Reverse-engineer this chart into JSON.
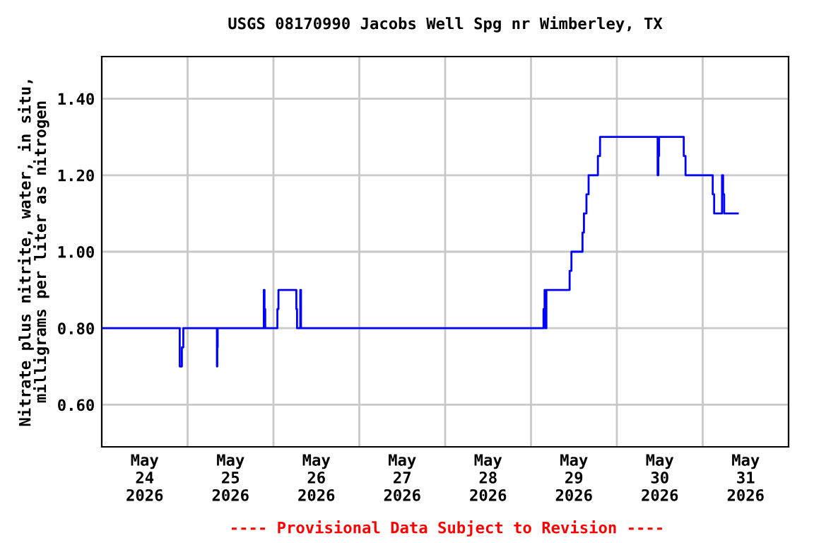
{
  "chart_data": {
    "type": "step",
    "title": "USGS 08170990 Jacobs Well Spg nr Wimberley, TX",
    "ylabel": "Nitrate plus nitrite, water, in situ,\nmilligrams per liter as nitrogen",
    "annotations": [
      "---- Provisional Data Subject to Revision ----"
    ],
    "series": [
      {
        "color": "#0000ff",
        "x": [
          "2026-05-24T00:00",
          "2026-05-24T21:48",
          "2026-05-24T22:24",
          "2026-05-24T22:48",
          "2026-05-25T08:12",
          "2026-05-25T08:18",
          "2026-05-25T08:24",
          "2026-05-25T21:18",
          "2026-05-25T21:30",
          "2026-05-25T21:42",
          "2026-05-26T01:06",
          "2026-05-26T01:24",
          "2026-05-26T06:24",
          "2026-05-26T06:36",
          "2026-05-26T07:30",
          "2026-05-26T07:42",
          "2026-05-29T03:30",
          "2026-05-29T03:48",
          "2026-05-29T04:00",
          "2026-05-29T04:18",
          "2026-05-29T10:48",
          "2026-05-29T11:18",
          "2026-05-29T14:24",
          "2026-05-29T14:48",
          "2026-05-29T15:30",
          "2026-05-29T16:06",
          "2026-05-29T18:42",
          "2026-05-29T19:18",
          "2026-05-30T11:24",
          "2026-05-30T11:36",
          "2026-05-30T11:48",
          "2026-05-30T18:42",
          "2026-05-30T19:12",
          "2026-05-31T02:48",
          "2026-05-31T03:12",
          "2026-05-31T05:24",
          "2026-05-31T05:42",
          "2026-05-31T06:00",
          "2026-05-31T09:48"
        ],
        "values": [
          0.8,
          0.7,
          0.75,
          0.8,
          0.7,
          0.75,
          0.8,
          0.9,
          0.85,
          0.8,
          0.85,
          0.9,
          0.85,
          0.8,
          0.9,
          0.8,
          0.85,
          0.9,
          0.8,
          0.9,
          0.95,
          1.0,
          1.05,
          1.1,
          1.15,
          1.2,
          1.25,
          1.3,
          1.2,
          1.25,
          1.3,
          1.25,
          1.2,
          1.15,
          1.1,
          1.2,
          1.15,
          1.1,
          1.1
        ]
      }
    ],
    "xlim": [
      "2026-05-24T00:00",
      "2026-06-01T00:00"
    ],
    "xticks": [
      {
        "value": "2026-05-24T12:00",
        "label": "May\n24\n2026"
      },
      {
        "value": "2026-05-25T00:00",
        "label": null
      },
      {
        "value": "2026-05-25T12:00",
        "label": "May\n25\n2026"
      },
      {
        "value": "2026-05-26T00:00",
        "label": null
      },
      {
        "value": "2026-05-26T12:00",
        "label": "May\n26\n2026"
      },
      {
        "value": "2026-05-27T00:00",
        "label": null
      },
      {
        "value": "2026-05-27T12:00",
        "label": "May\n27\n2026"
      },
      {
        "value": "2026-05-28T00:00",
        "label": null
      },
      {
        "value": "2026-05-28T12:00",
        "label": "May\n28\n2026"
      },
      {
        "value": "2026-05-29T00:00",
        "label": null
      },
      {
        "value": "2026-05-29T12:00",
        "label": "May\n29\n2026"
      },
      {
        "value": "2026-05-30T00:00",
        "label": null
      },
      {
        "value": "2026-05-30T12:00",
        "label": "May\n30\n2026"
      },
      {
        "value": "2026-05-31T00:00",
        "label": null
      },
      {
        "value": "2026-05-31T12:00",
        "label": "May\n31\n2026"
      }
    ],
    "ylim": [
      0.49,
      1.51
    ],
    "yticks": [
      {
        "value": 0.6,
        "label": "0.60"
      },
      {
        "value": 0.8,
        "label": "0.80"
      },
      {
        "value": 1.0,
        "label": "1.00"
      },
      {
        "value": 1.2,
        "label": "1.20"
      },
      {
        "value": 1.4,
        "label": "1.40"
      }
    ],
    "grid": true,
    "legend": false
  }
}
